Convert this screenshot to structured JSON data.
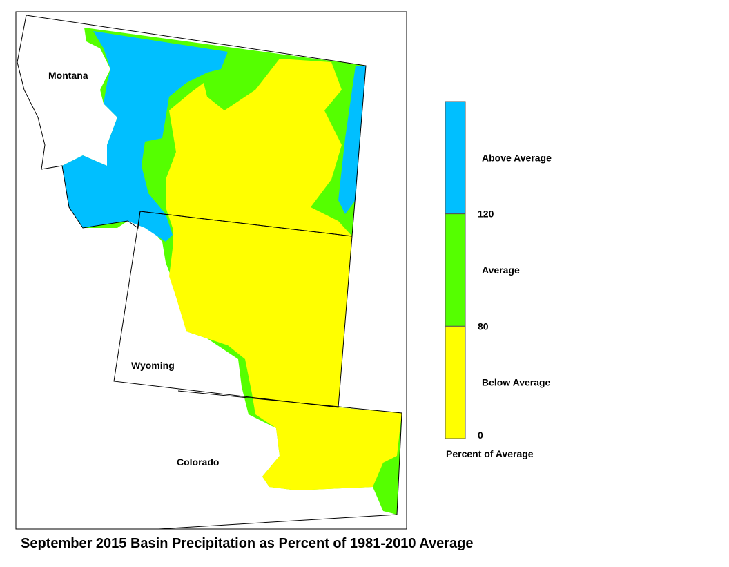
{
  "map": {
    "title": "September 2015 Basin Precipitation as Percent of 1981-2010 Average",
    "states": [
      "Montana",
      "Wyoming",
      "Colorado"
    ],
    "legend": {
      "title": "Percent of Average",
      "classes": [
        {
          "label": "Above Average",
          "color": "#00bfff"
        },
        {
          "label": "Average",
          "color": "#55ff00"
        },
        {
          "label": "Below Average",
          "color": "#ffff00"
        }
      ],
      "ticks": [
        120,
        80,
        0
      ]
    }
  }
}
